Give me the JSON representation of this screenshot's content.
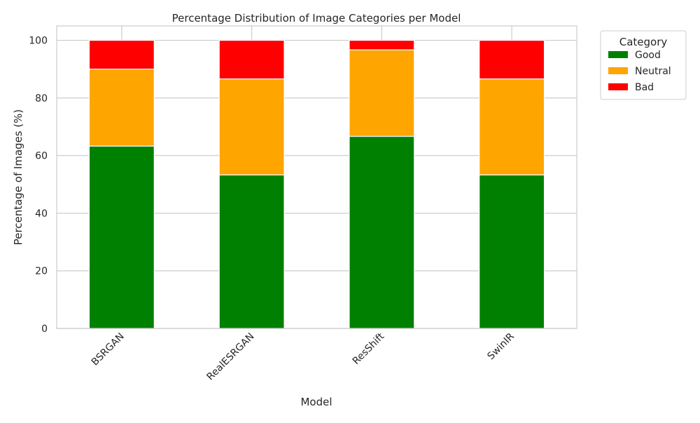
{
  "chart_data": {
    "type": "bar",
    "stacked": true,
    "title": "Percentage Distribution of Image Categories per Model",
    "xlabel": "Model",
    "ylabel": "Percentage of Images (%)",
    "categories": [
      "BSRGAN",
      "RealESRGAN",
      "ResShift",
      "SwinIR"
    ],
    "series": [
      {
        "name": "Good",
        "color": "#008000",
        "values": [
          63.3,
          53.3,
          66.7,
          53.3
        ]
      },
      {
        "name": "Neutral",
        "color": "#ffa500",
        "values": [
          26.7,
          33.3,
          30.0,
          33.3
        ]
      },
      {
        "name": "Bad",
        "color": "#ff0000",
        "values": [
          10.0,
          13.4,
          3.3,
          13.4
        ]
      }
    ],
    "ylim": [
      0,
      105
    ],
    "yticks": [
      0,
      20,
      40,
      60,
      80,
      100
    ],
    "grid": true,
    "legend": {
      "title": "Category",
      "position": "outside-top-right"
    },
    "tick_rotation": 45
  }
}
